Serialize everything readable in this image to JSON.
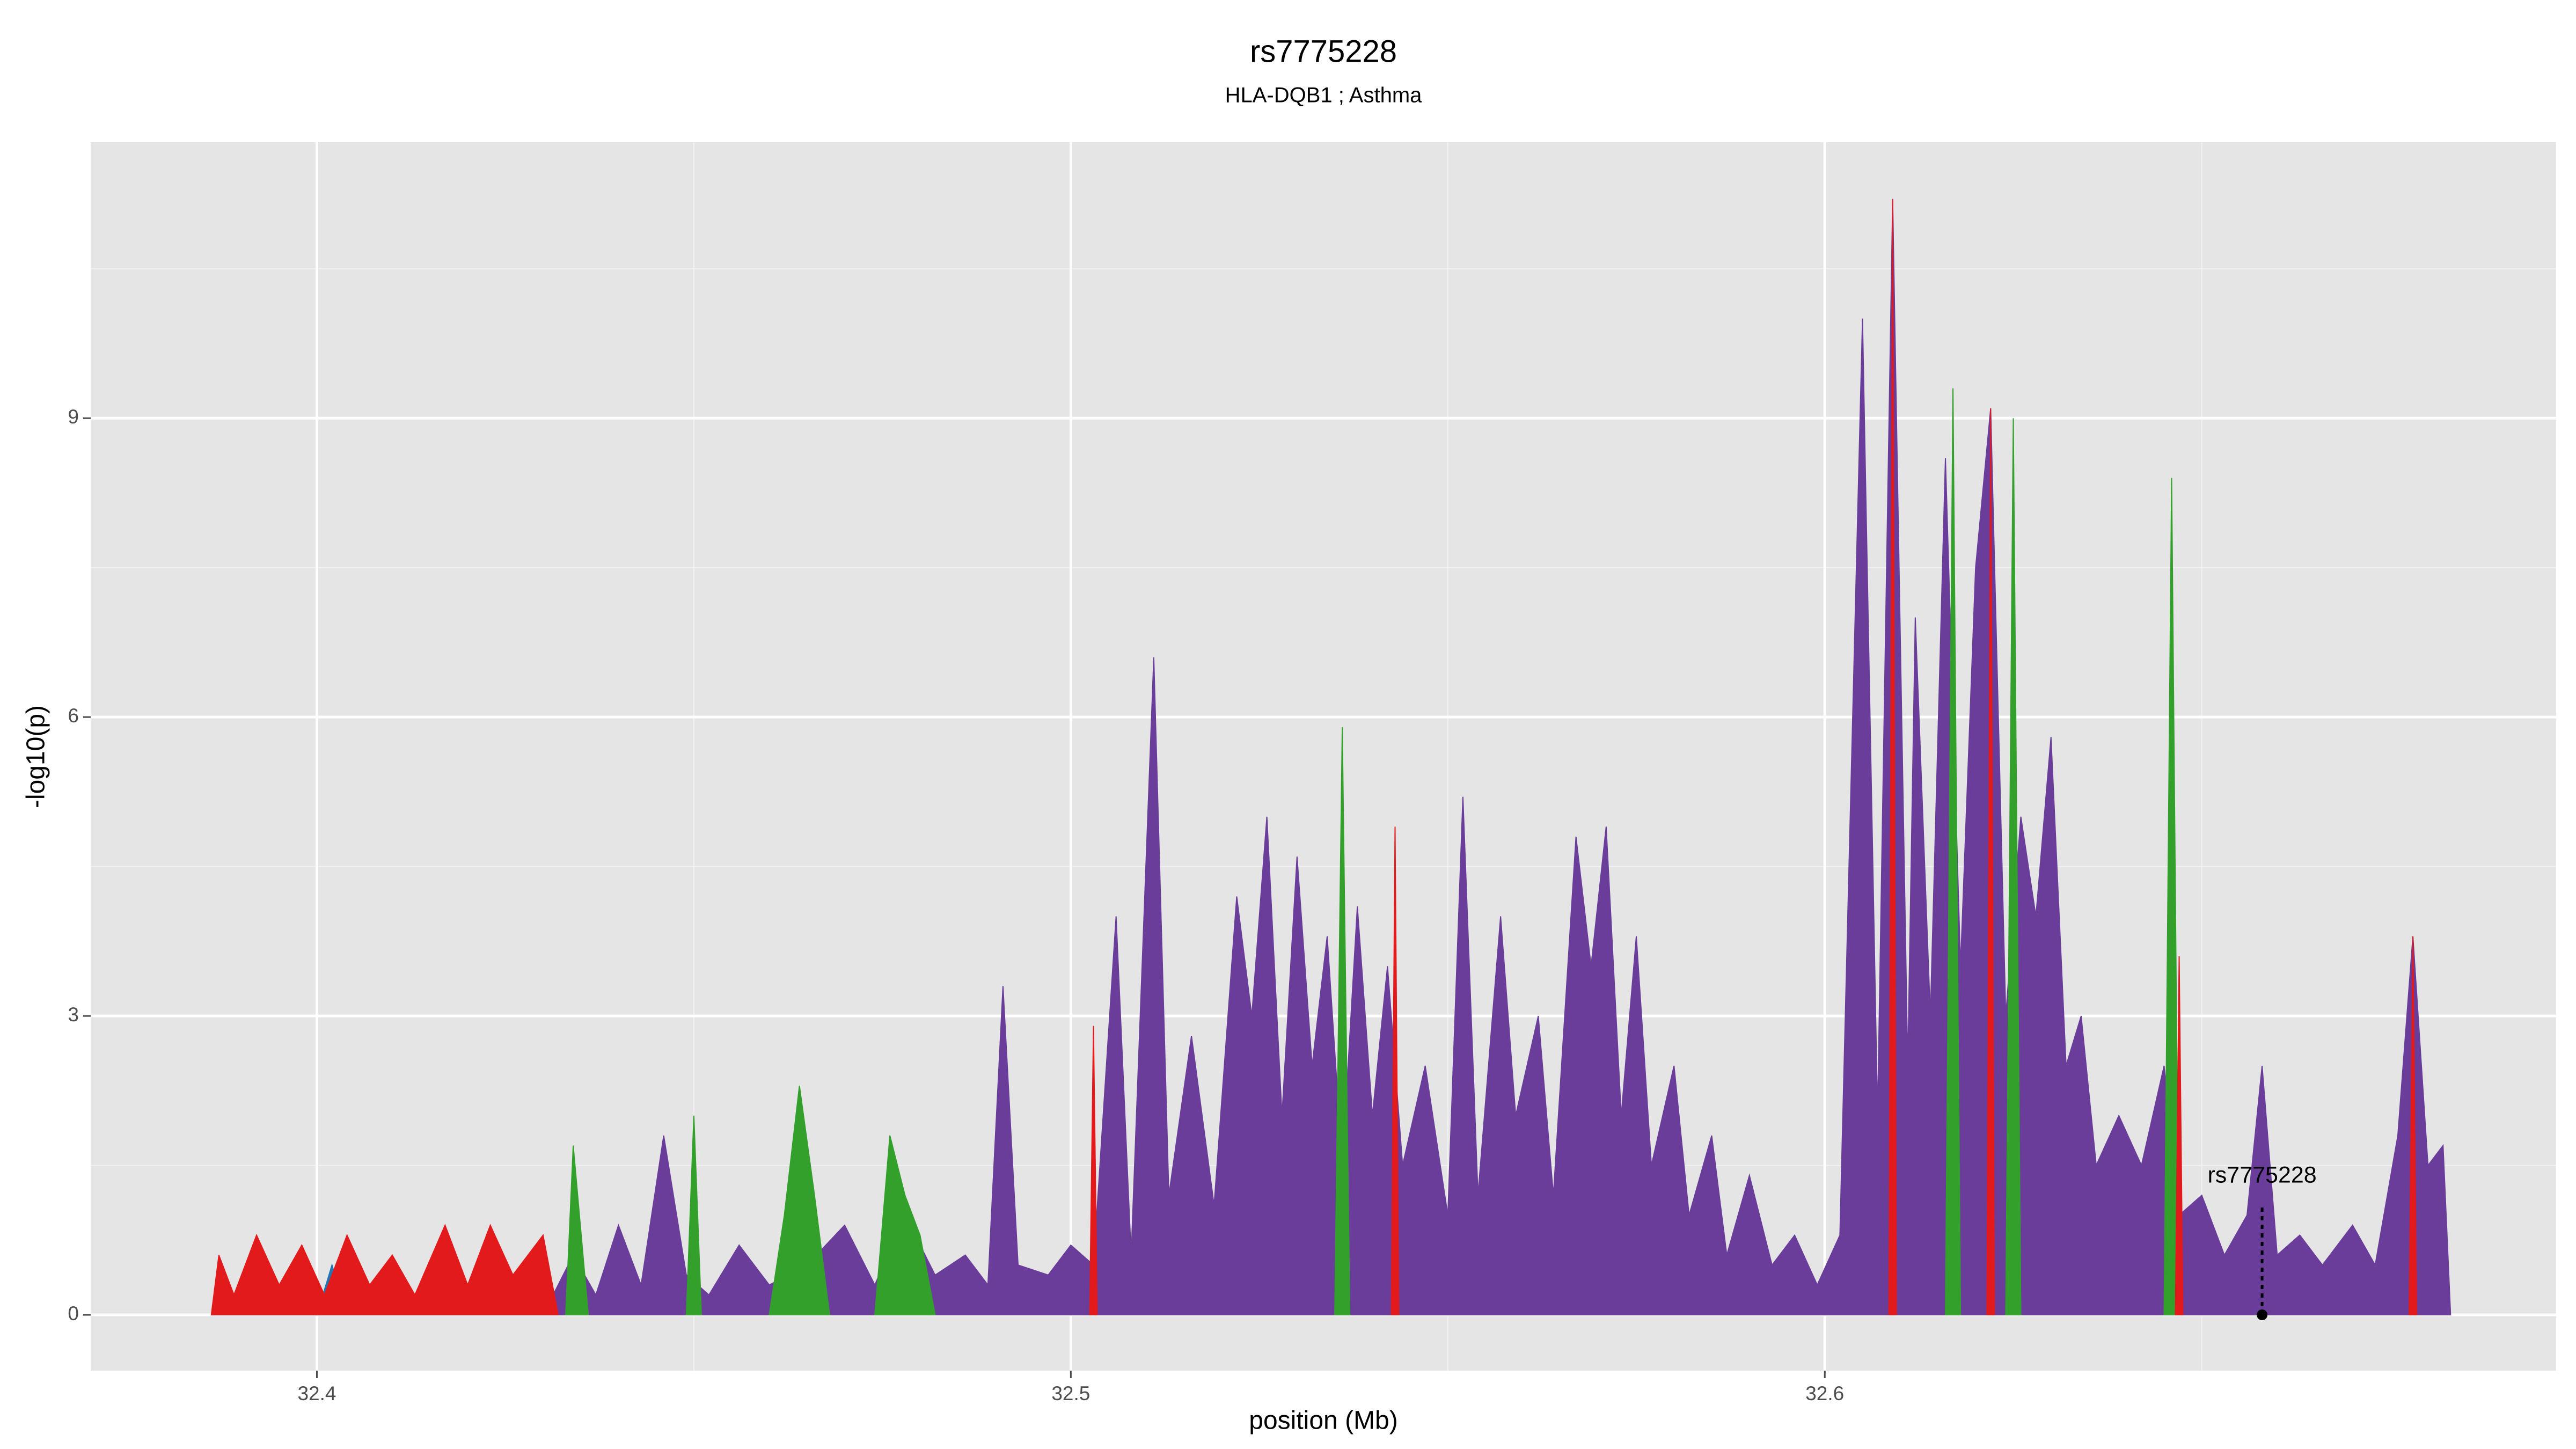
{
  "chart_data": {
    "type": "area",
    "title": "rs7775228",
    "subtitle": "HLA-DQB1 ; Asthma",
    "xlabel": "position (Mb)",
    "ylabel": "-log10(p)",
    "xlim": [
      32.37,
      32.697
    ],
    "ylim": [
      -0.56,
      11.77
    ],
    "xticks": [
      32.4,
      32.5,
      32.6
    ],
    "yticks": [
      0,
      3,
      6,
      9
    ],
    "xminorticks": [
      32.45,
      32.55,
      32.65
    ],
    "yminorticks": [
      1.5,
      4.5,
      7.5,
      10.5
    ],
    "grid": true,
    "background": "#e5e5e5",
    "series": [
      {
        "color": "#6a3d9a",
        "x": [
          32.43,
          32.434,
          32.437,
          32.44,
          32.443,
          32.446,
          32.449,
          32.452,
          32.456,
          32.46,
          32.465,
          32.47,
          32.474,
          32.478,
          32.482,
          32.486,
          32.489,
          32.491,
          32.493,
          32.497,
          32.5,
          32.503,
          32.506,
          32.508,
          32.511,
          32.513,
          32.516,
          32.519,
          32.522,
          32.524,
          32.526,
          32.528,
          32.53,
          32.532,
          32.534,
          32.536,
          32.538,
          32.54,
          32.542,
          32.544,
          32.547,
          32.55,
          32.552,
          32.554,
          32.557,
          32.559,
          32.562,
          32.564,
          32.567,
          32.569,
          32.571,
          32.573,
          32.575,
          32.577,
          32.58,
          32.582,
          32.585,
          32.587,
          32.59,
          32.593,
          32.596,
          32.599,
          32.602,
          32.605,
          32.607,
          32.609,
          32.611,
          32.612,
          32.614,
          32.616,
          32.618,
          32.62,
          32.622,
          32.624,
          32.626,
          32.628,
          32.63,
          32.632,
          32.634,
          32.636,
          32.639,
          32.642,
          32.645,
          32.647,
          32.65,
          32.653,
          32.656,
          32.658,
          32.66,
          32.663,
          32.666,
          32.67,
          32.673,
          32.676,
          32.678,
          32.68,
          32.682,
          32.683
        ],
        "values": [
          0,
          0.6,
          0.2,
          0.9,
          0.3,
          1.8,
          0.4,
          0.2,
          0.7,
          0.3,
          0.5,
          0.9,
          0.3,
          1.0,
          0.4,
          0.6,
          0.3,
          3.3,
          0.5,
          0.4,
          0.7,
          0.5,
          4.0,
          0.6,
          6.6,
          1.2,
          2.8,
          1.1,
          4.2,
          3.0,
          5.0,
          2.0,
          4.6,
          2.5,
          3.8,
          1.5,
          4.1,
          2.0,
          3.5,
          1.5,
          2.5,
          1.0,
          5.2,
          1.2,
          4.0,
          2.0,
          3.0,
          1.2,
          4.8,
          3.5,
          4.9,
          2.0,
          3.8,
          1.5,
          2.5,
          1.0,
          1.8,
          0.6,
          1.4,
          0.5,
          0.8,
          0.3,
          0.8,
          10.0,
          2.0,
          11.2,
          2.5,
          7.0,
          3.0,
          8.6,
          3.5,
          7.5,
          9.1,
          3.0,
          5.0,
          4.0,
          5.8,
          2.5,
          3.0,
          1.5,
          2.0,
          1.5,
          2.5,
          1.0,
          1.2,
          0.6,
          1.0,
          2.5,
          0.6,
          0.8,
          0.5,
          0.9,
          0.5,
          1.8,
          3.8,
          1.5,
          1.7,
          0
        ]
      },
      {
        "color": "#1f78b4",
        "x": [
          32.4,
          32.402,
          32.404,
          null,
          32.418,
          32.419,
          32.421
        ],
        "values": [
          0,
          0.5,
          0,
          null,
          0,
          0.5,
          0
        ]
      },
      {
        "color": "#33a02c",
        "x": [
          32.433,
          32.434,
          32.436,
          null,
          32.449,
          32.45,
          32.451,
          null,
          32.46,
          32.462,
          32.464,
          32.466,
          32.468,
          null,
          32.474,
          32.476,
          32.478,
          32.48,
          32.482,
          null,
          32.535,
          32.536,
          32.537,
          null,
          32.616,
          32.617,
          32.618,
          null,
          32.624,
          32.625,
          32.626,
          null,
          32.645,
          32.646,
          32.647
        ],
        "values": [
          0,
          1.7,
          0,
          null,
          0,
          2.0,
          0,
          null,
          0,
          1.0,
          2.3,
          1.2,
          0,
          null,
          0,
          1.8,
          1.2,
          0.8,
          0,
          null,
          0,
          5.9,
          0,
          null,
          0,
          9.3,
          0,
          null,
          0,
          9.0,
          0,
          null,
          0,
          8.4,
          0
        ]
      },
      {
        "color": "#e31a1c",
        "x": [
          32.386,
          32.387,
          32.389,
          32.392,
          32.395,
          32.398,
          32.401,
          32.404,
          32.407,
          32.41,
          32.413,
          32.417,
          32.42,
          32.423,
          32.426,
          32.43,
          32.432,
          null,
          32.5025,
          32.503,
          32.5035,
          null,
          32.5425,
          32.543,
          32.5435,
          null,
          32.6085,
          32.609,
          32.6095,
          null,
          32.6215,
          32.622,
          32.6225,
          null,
          32.6465,
          32.647,
          32.6475,
          null,
          32.6775,
          32.678,
          32.6785
        ],
        "values": [
          0,
          0.6,
          0.2,
          0.8,
          0.3,
          0.7,
          0.2,
          0.8,
          0.3,
          0.6,
          0.2,
          0.9,
          0.3,
          0.9,
          0.4,
          0.8,
          0,
          null,
          0,
          2.9,
          0,
          null,
          0,
          4.9,
          0,
          null,
          0,
          11.2,
          0,
          null,
          0,
          9.1,
          0,
          null,
          0,
          3.6,
          0,
          null,
          0,
          3.8,
          0
        ]
      }
    ],
    "annotation": {
      "text": "rs7775228",
      "x": 32.658,
      "y": 1.39
    }
  }
}
